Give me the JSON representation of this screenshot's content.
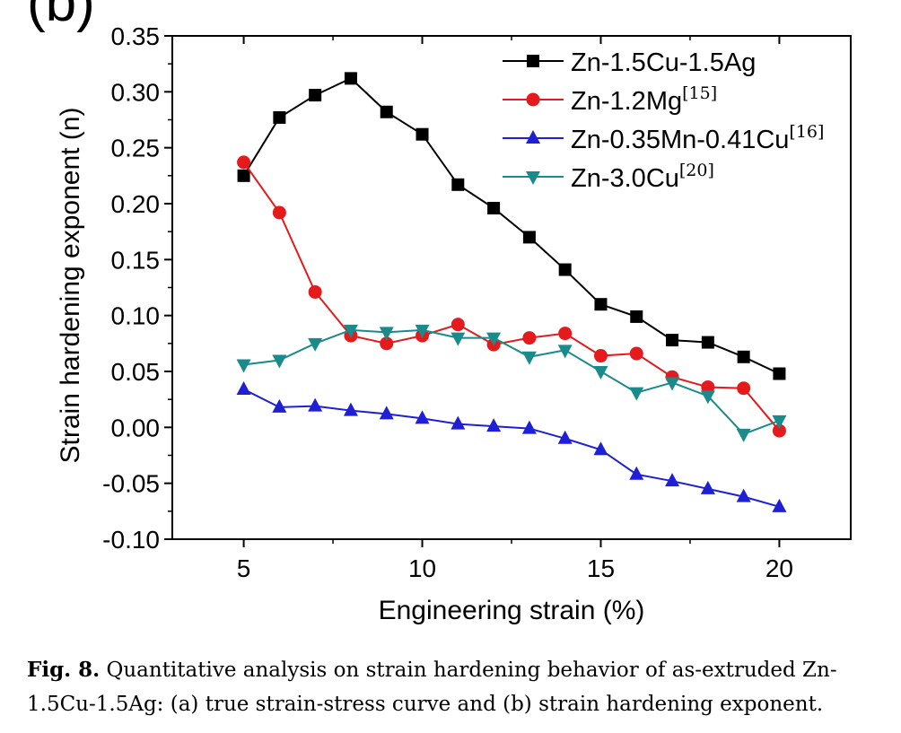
{
  "panel_label": "(b)",
  "caption": {
    "figure_no": "Fig. 8.",
    "text": "Quantitative analysis on strain hardening behavior of as-extruded Zn-1.5Cu-1.5Ag: (a) true strain-stress curve and (b) strain hardening exponent."
  },
  "chart_data": {
    "type": "line",
    "xlabel": "Engineering strain (%)",
    "ylabel": "Strain hardening exponent (n)",
    "xlim": [
      3,
      22
    ],
    "ylim": [
      -0.1,
      0.35
    ],
    "x_ticks": [
      "5",
      "10",
      "15",
      "20"
    ],
    "x_tick_values": [
      5,
      10,
      15,
      20
    ],
    "y_ticks": [
      "-0.10",
      "-0.05",
      "0.00",
      "0.05",
      "0.10",
      "0.15",
      "0.20",
      "0.25",
      "0.30",
      "0.35"
    ],
    "y_tick_values": [
      -0.1,
      -0.05,
      0.0,
      0.05,
      0.1,
      0.15,
      0.2,
      0.25,
      0.3,
      0.35
    ],
    "grid": false,
    "legend_position": "top-right",
    "x": [
      5,
      6,
      7,
      8,
      9,
      10,
      11,
      12,
      13,
      14,
      15,
      16,
      17,
      18,
      19,
      20
    ],
    "series": [
      {
        "name": "Zn-1.5Cu-1.5Ag",
        "ref": "",
        "color": "#000000",
        "marker": "square",
        "values": [
          0.225,
          0.277,
          0.297,
          0.312,
          0.282,
          0.262,
          0.217,
          0.196,
          0.17,
          0.141,
          0.11,
          0.099,
          0.078,
          0.076,
          0.063,
          0.048
        ]
      },
      {
        "name": "Zn-1.2Mg",
        "ref": "[15]",
        "color": "#e41a1c",
        "marker": "circle",
        "values": [
          0.237,
          0.192,
          0.121,
          0.082,
          0.075,
          0.082,
          0.092,
          0.074,
          0.08,
          0.084,
          0.064,
          0.066,
          0.045,
          0.036,
          0.035,
          -0.003
        ]
      },
      {
        "name": "Zn-0.35Mn-0.41Cu",
        "ref": "[16]",
        "color": "#1f1fd6",
        "marker": "triangle-up",
        "values": [
          0.034,
          0.018,
          0.019,
          0.015,
          0.012,
          0.008,
          0.003,
          0.001,
          -0.001,
          -0.01,
          -0.02,
          -0.042,
          -0.048,
          -0.055,
          -0.062,
          -0.071
        ]
      },
      {
        "name": "Zn-3.0Cu",
        "ref": "[20]",
        "color": "#1a8a8a",
        "marker": "triangle-down",
        "values": [
          0.056,
          0.06,
          0.075,
          0.087,
          0.085,
          0.087,
          0.08,
          0.08,
          0.063,
          0.069,
          0.05,
          0.031,
          0.04,
          0.028,
          -0.006,
          0.006
        ]
      }
    ]
  }
}
